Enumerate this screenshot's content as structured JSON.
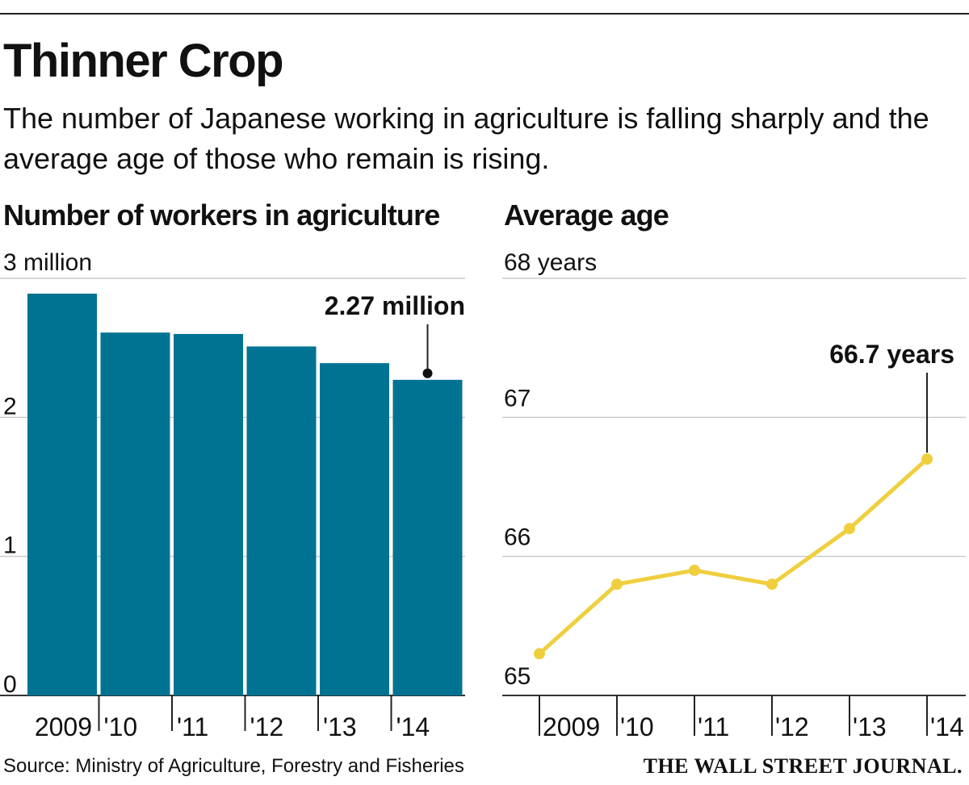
{
  "header": {
    "title": "Thinner Crop",
    "subtitle": "The number of Japanese working in agriculture is falling sharply and the average age of those who remain is rising."
  },
  "footer": {
    "source": "Source: Ministry of Agriculture, Forestry and Fisheries",
    "logo_text": "THE WALL STREET JOURNAL."
  },
  "colors": {
    "bar": "#007393",
    "line": "#efcf3e",
    "grid": "#cccccc",
    "text": "#111111"
  },
  "chart_data": [
    {
      "type": "bar",
      "title": "Number of workers in agriculture",
      "categories": [
        "2009",
        "'10",
        "'11",
        "'12",
        "'13",
        "'14"
      ],
      "values": [
        2.89,
        2.61,
        2.6,
        2.51,
        2.39,
        2.27
      ],
      "ylim": [
        0,
        3
      ],
      "yticks": [
        0,
        1,
        2,
        3
      ],
      "ytick_labels": [
        "0",
        "1",
        "2",
        "3 million"
      ],
      "grid": true,
      "annotation": {
        "category": "'14",
        "text": "2.27 million"
      }
    },
    {
      "type": "line",
      "title": "Average age",
      "categories": [
        "2009",
        "'10",
        "'11",
        "'12",
        "'13",
        "'14"
      ],
      "values": [
        65.3,
        65.8,
        65.9,
        65.8,
        66.2,
        66.7
      ],
      "ylim": [
        65,
        68
      ],
      "yticks": [
        65,
        66,
        67,
        68
      ],
      "ytick_labels": [
        "65",
        "66",
        "67",
        "68 years"
      ],
      "grid": true,
      "annotation": {
        "category": "'14",
        "text": "66.7 years"
      }
    }
  ]
}
